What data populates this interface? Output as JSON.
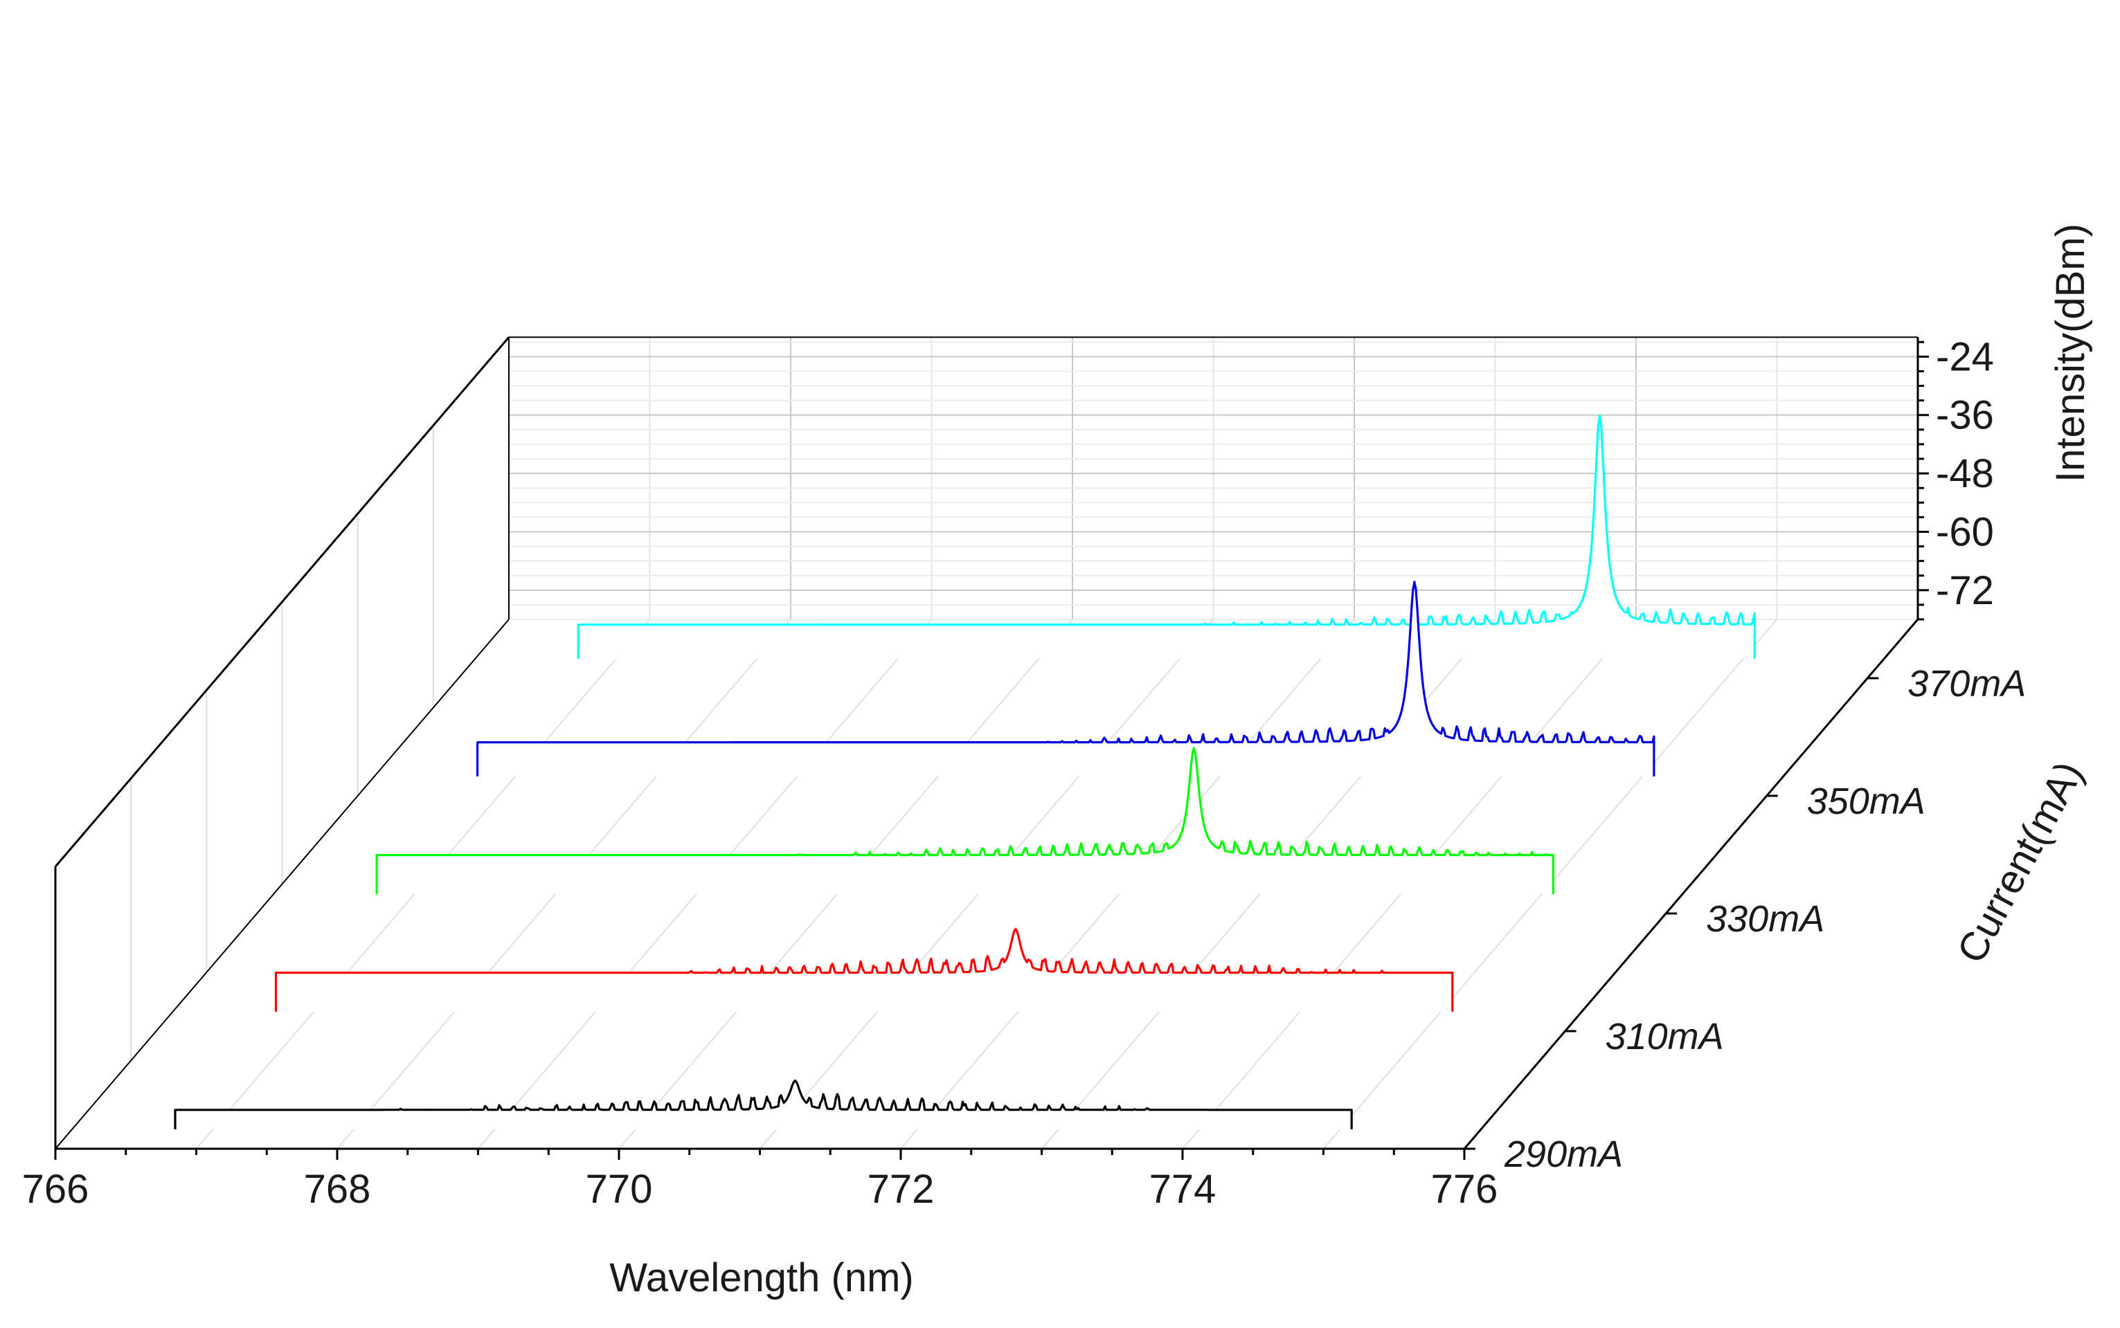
{
  "chart_data": {
    "type": "line",
    "style": "3d-waterfall",
    "xlabel": "Wavelength (nm)",
    "ylabel": "Intensity(dBm)",
    "zlabel": "Current(mA)",
    "x_ticks": [
      "766",
      "768",
      "770",
      "772",
      "774",
      "776"
    ],
    "y_ticks": [
      "-24",
      "-36",
      "-48",
      "-60",
      "-72"
    ],
    "xlim": [
      766,
      776
    ],
    "ylim": [
      -78,
      -20
    ],
    "grid": true,
    "series": [
      {
        "name": "290mA",
        "color": "#000000",
        "peak_x": 771.25,
        "peak_y": -64,
        "base_y": -70,
        "mode_spacing_nm": 0.1
      },
      {
        "name": "310mA",
        "color": "#ff0000",
        "peak_x": 772.1,
        "peak_y": -57,
        "base_y": -66,
        "mode_spacing_nm": 0.1
      },
      {
        "name": "330mA",
        "color": "#00ff00",
        "peak_x": 772.65,
        "peak_y": -44,
        "base_y": -66,
        "mode_spacing_nm": 0.1
      },
      {
        "name": "350mA",
        "color": "#0000e0",
        "peak_x": 773.5,
        "peak_y": -34,
        "base_y": -67,
        "mode_spacing_nm": 0.1
      },
      {
        "name": "370mA",
        "color": "#00ffff",
        "peak_x": 774.1,
        "peak_y": -24,
        "base_y": -67,
        "mode_spacing_nm": 0.1
      }
    ]
  }
}
